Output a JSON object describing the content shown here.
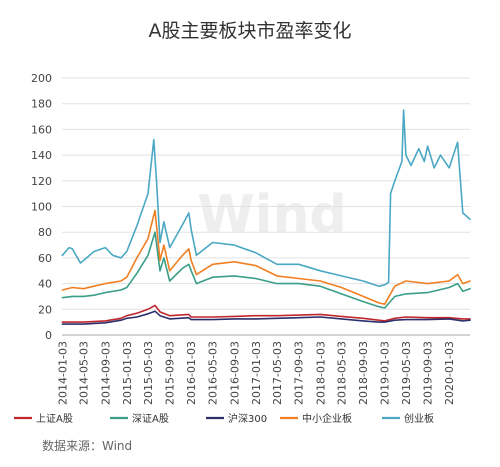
{
  "chart_data": {
    "type": "line",
    "title": "A股主要板块市盈率变化",
    "xlabel": "",
    "ylabel": "",
    "ylim": [
      0,
      200
    ],
    "yticks": [
      0,
      20,
      40,
      60,
      80,
      100,
      120,
      140,
      160,
      180,
      200
    ],
    "xlim": [
      "2014-01-01",
      "2020-04-30"
    ],
    "xtick_labels": [
      "2014-01-03",
      "2014-05-03",
      "2014-09-03",
      "2015-01-03",
      "2015-05-03",
      "2015-09-03",
      "2016-01-03",
      "2016-05-03",
      "2016-09-03",
      "2017-01-03",
      "2017-05-03",
      "2017-09-03",
      "2018-01-03",
      "2018-05-03",
      "2018-09-03",
      "2019-01-03",
      "2019-05-03",
      "2019-09-03",
      "2020-01-03"
    ],
    "grid": "horizontal",
    "legend_position": "bottom",
    "source": "数据来源：Wind",
    "watermark": "Wind",
    "series": [
      {
        "name": "上证A股",
        "color": "#c0272d",
        "points": [
          [
            "2014-01-03",
            10
          ],
          [
            "2014-05-03",
            10
          ],
          [
            "2014-09-03",
            11
          ],
          [
            "2014-12-01",
            13
          ],
          [
            "2015-01-03",
            15
          ],
          [
            "2015-03-01",
            17
          ],
          [
            "2015-05-03",
            20
          ],
          [
            "2015-06-12",
            23
          ],
          [
            "2015-07-10",
            18
          ],
          [
            "2015-09-03",
            15
          ],
          [
            "2015-12-20",
            16
          ],
          [
            "2016-01-03",
            14
          ],
          [
            "2016-05-03",
            14
          ],
          [
            "2016-09-03",
            14.5
          ],
          [
            "2017-01-03",
            15
          ],
          [
            "2017-05-03",
            15
          ],
          [
            "2017-09-03",
            15.5
          ],
          [
            "2018-01-03",
            16
          ],
          [
            "2018-05-03",
            14.5
          ],
          [
            "2018-09-03",
            13
          ],
          [
            "2018-12-01",
            11.5
          ],
          [
            "2019-01-03",
            11
          ],
          [
            "2019-03-01",
            13
          ],
          [
            "2019-05-03",
            14
          ],
          [
            "2019-09-03",
            13.5
          ],
          [
            "2020-01-03",
            13.5
          ],
          [
            "2020-03-20",
            12.5
          ],
          [
            "2020-04-30",
            12.5
          ]
        ]
      },
      {
        "name": "深证A股",
        "color": "#3a9e88",
        "points": [
          [
            "2014-01-03",
            29
          ],
          [
            "2014-03-01",
            30
          ],
          [
            "2014-05-03",
            30
          ],
          [
            "2014-07-01",
            31
          ],
          [
            "2014-09-03",
            33
          ],
          [
            "2014-12-01",
            35
          ],
          [
            "2015-01-03",
            37
          ],
          [
            "2015-03-01",
            48
          ],
          [
            "2015-05-03",
            62
          ],
          [
            "2015-06-12",
            80
          ],
          [
            "2015-07-10",
            50
          ],
          [
            "2015-08-01",
            60
          ],
          [
            "2015-09-03",
            42
          ],
          [
            "2015-11-15",
            52
          ],
          [
            "2015-12-20",
            55
          ],
          [
            "2016-01-03",
            50
          ],
          [
            "2016-02-01",
            40
          ],
          [
            "2016-05-03",
            45
          ],
          [
            "2016-09-03",
            46
          ],
          [
            "2017-01-03",
            44
          ],
          [
            "2017-05-03",
            40
          ],
          [
            "2017-09-03",
            40
          ],
          [
            "2018-01-03",
            38
          ],
          [
            "2018-05-03",
            32
          ],
          [
            "2018-09-03",
            26
          ],
          [
            "2018-12-01",
            22
          ],
          [
            "2019-01-03",
            21
          ],
          [
            "2019-03-01",
            30
          ],
          [
            "2019-05-03",
            32
          ],
          [
            "2019-09-03",
            33
          ],
          [
            "2020-01-03",
            37
          ],
          [
            "2020-02-20",
            40
          ],
          [
            "2020-03-20",
            34
          ],
          [
            "2020-04-30",
            36
          ]
        ]
      },
      {
        "name": "沪深300",
        "color": "#2b2f6b",
        "points": [
          [
            "2014-01-03",
            8.5
          ],
          [
            "2014-05-03",
            8.5
          ],
          [
            "2014-09-03",
            9.5
          ],
          [
            "2014-12-01",
            11.5
          ],
          [
            "2015-01-03",
            13
          ],
          [
            "2015-03-01",
            14
          ],
          [
            "2015-05-03",
            16.5
          ],
          [
            "2015-06-12",
            18.5
          ],
          [
            "2015-07-10",
            15
          ],
          [
            "2015-09-03",
            12.5
          ],
          [
            "2015-12-20",
            13.5
          ],
          [
            "2016-01-03",
            12
          ],
          [
            "2016-05-03",
            12
          ],
          [
            "2016-09-03",
            12.5
          ],
          [
            "2017-01-03",
            12.5
          ],
          [
            "2017-05-03",
            13
          ],
          [
            "2017-09-03",
            13.5
          ],
          [
            "2018-01-03",
            14
          ],
          [
            "2018-05-03",
            12.5
          ],
          [
            "2018-09-03",
            11
          ],
          [
            "2018-12-01",
            10
          ],
          [
            "2019-01-03",
            10
          ],
          [
            "2019-03-01",
            11.5
          ],
          [
            "2019-05-03",
            12
          ],
          [
            "2019-09-03",
            12
          ],
          [
            "2020-01-03",
            12.5
          ],
          [
            "2020-03-20",
            11
          ],
          [
            "2020-04-30",
            11.5
          ]
        ]
      },
      {
        "name": "中小企业板",
        "color": "#f07f23",
        "points": [
          [
            "2014-01-03",
            35
          ],
          [
            "2014-03-01",
            37
          ],
          [
            "2014-05-03",
            36
          ],
          [
            "2014-07-01",
            38
          ],
          [
            "2014-09-03",
            40
          ],
          [
            "2014-12-01",
            42
          ],
          [
            "2015-01-03",
            45
          ],
          [
            "2015-03-01",
            60
          ],
          [
            "2015-05-03",
            75
          ],
          [
            "2015-06-12",
            97
          ],
          [
            "2015-07-10",
            58
          ],
          [
            "2015-08-01",
            70
          ],
          [
            "2015-09-03",
            50
          ],
          [
            "2015-11-15",
            62
          ],
          [
            "2015-12-20",
            67
          ],
          [
            "2016-01-03",
            58
          ],
          [
            "2016-02-01",
            47
          ],
          [
            "2016-05-03",
            55
          ],
          [
            "2016-09-03",
            57
          ],
          [
            "2017-01-03",
            54
          ],
          [
            "2017-05-03",
            46
          ],
          [
            "2017-09-03",
            44
          ],
          [
            "2018-01-03",
            42
          ],
          [
            "2018-05-03",
            37
          ],
          [
            "2018-09-03",
            30
          ],
          [
            "2018-12-01",
            25
          ],
          [
            "2019-01-03",
            24
          ],
          [
            "2019-03-01",
            38
          ],
          [
            "2019-05-03",
            42
          ],
          [
            "2019-09-03",
            40
          ],
          [
            "2020-01-03",
            42
          ],
          [
            "2020-02-20",
            47
          ],
          [
            "2020-03-20",
            40
          ],
          [
            "2020-04-30",
            42
          ]
        ]
      },
      {
        "name": "创业板",
        "color": "#4aa8c4",
        "points": [
          [
            "2014-01-03",
            62
          ],
          [
            "2014-02-10",
            68
          ],
          [
            "2014-03-01",
            67
          ],
          [
            "2014-04-15",
            56
          ],
          [
            "2014-05-03",
            58
          ],
          [
            "2014-07-01",
            65
          ],
          [
            "2014-09-03",
            68
          ],
          [
            "2014-10-15",
            62
          ],
          [
            "2014-12-01",
            60
          ],
          [
            "2015-01-03",
            65
          ],
          [
            "2015-03-01",
            85
          ],
          [
            "2015-05-03",
            110
          ],
          [
            "2015-06-05",
            152
          ],
          [
            "2015-06-20",
            120
          ],
          [
            "2015-07-10",
            72
          ],
          [
            "2015-08-01",
            88
          ],
          [
            "2015-09-03",
            68
          ],
          [
            "2015-11-15",
            86
          ],
          [
            "2015-12-20",
            95
          ],
          [
            "2016-01-03",
            82
          ],
          [
            "2016-02-01",
            62
          ],
          [
            "2016-05-03",
            72
          ],
          [
            "2016-09-03",
            70
          ],
          [
            "2017-01-03",
            64
          ],
          [
            "2017-05-03",
            55
          ],
          [
            "2017-09-03",
            55
          ],
          [
            "2018-01-03",
            50
          ],
          [
            "2018-05-03",
            46
          ],
          [
            "2018-09-03",
            42
          ],
          [
            "2018-12-01",
            38
          ],
          [
            "2019-01-03",
            39
          ],
          [
            "2019-01-25",
            41
          ],
          [
            "2019-02-05",
            110
          ],
          [
            "2019-03-01",
            120
          ],
          [
            "2019-04-10",
            135
          ],
          [
            "2019-04-20",
            175
          ],
          [
            "2019-05-03",
            140
          ],
          [
            "2019-06-01",
            132
          ],
          [
            "2019-07-15",
            145
          ],
          [
            "2019-08-15",
            135
          ],
          [
            "2019-09-03",
            147
          ],
          [
            "2019-10-10",
            130
          ],
          [
            "2019-11-15",
            140
          ],
          [
            "2020-01-03",
            130
          ],
          [
            "2020-02-20",
            150
          ],
          [
            "2020-03-20",
            95
          ],
          [
            "2020-04-30",
            90
          ]
        ]
      }
    ]
  }
}
